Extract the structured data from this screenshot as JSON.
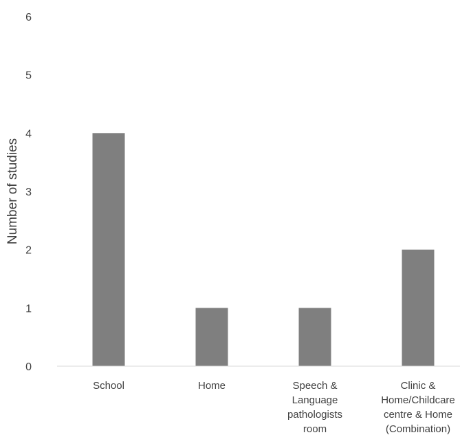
{
  "chart_data": {
    "type": "bar",
    "title": "",
    "xlabel": "",
    "ylabel": "Number of studies",
    "ylim": [
      0,
      6
    ],
    "yticks": [
      "0",
      "1",
      "2",
      "3",
      "4",
      "5",
      "6"
    ],
    "grid": false,
    "legend": "none",
    "bar_color": "#7f7f7f",
    "axis_color": "#d9d9d9",
    "text_color": "#404040",
    "categories": [
      [
        "School"
      ],
      [
        "Home"
      ],
      [
        "Speech &",
        "Language",
        "pathologists",
        "room"
      ],
      [
        "Clinic &",
        "Home/Childcare",
        "centre & Home",
        "(Combination)"
      ]
    ],
    "values": [
      4,
      1,
      1,
      2
    ]
  }
}
